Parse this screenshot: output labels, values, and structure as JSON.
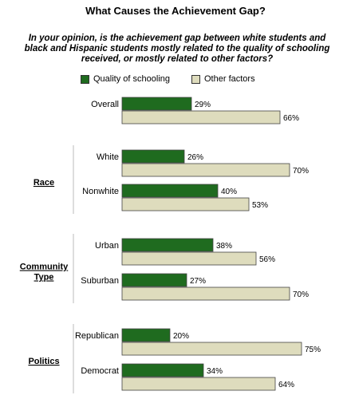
{
  "title": "What Causes the Achievement Gap?",
  "subtitle": "In your opinion, is the achievement gap between white students and black and Hispanic students mostly related to the quality of schooling received, or mostly related to other factors?",
  "colors": {
    "quality": "#1f6b1f",
    "other": "#dedcbd",
    "border": "#444444"
  },
  "chart_data": {
    "type": "bar",
    "orientation": "horizontal",
    "series": [
      {
        "name": "Quality of schooling"
      },
      {
        "name": "Other factors"
      }
    ],
    "groups": [
      {
        "name": "",
        "rows": [
          {
            "label": "Overall",
            "values": [
              29,
              66
            ]
          }
        ]
      },
      {
        "name": "Race",
        "rows": [
          {
            "label": "White",
            "values": [
              26,
              70
            ]
          },
          {
            "label": "Nonwhite",
            "values": [
              40,
              53
            ]
          }
        ]
      },
      {
        "name": "Community Type",
        "rows": [
          {
            "label": "Urban",
            "values": [
              38,
              56
            ]
          },
          {
            "label": "Suburban",
            "values": [
              27,
              70
            ]
          }
        ]
      },
      {
        "name": "Politics",
        "rows": [
          {
            "label": "Republican",
            "values": [
              20,
              75
            ]
          },
          {
            "label": "Democrat",
            "values": [
              34,
              64
            ]
          }
        ]
      }
    ],
    "value_suffix": "%",
    "xlim": [
      0,
      100
    ],
    "grid": false,
    "legend_position": "top"
  }
}
